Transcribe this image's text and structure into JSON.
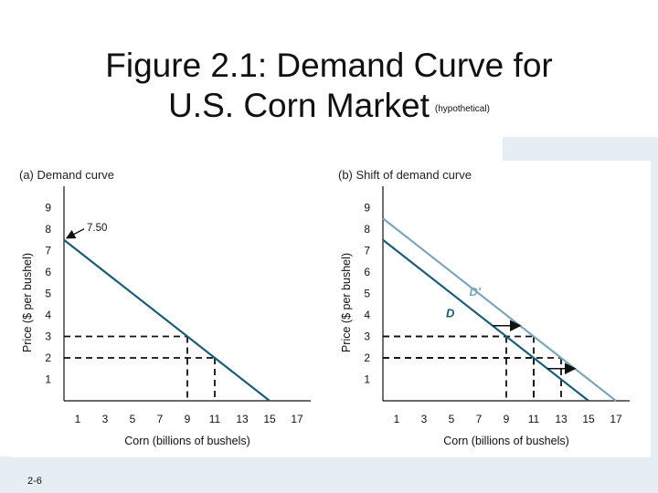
{
  "slide": {
    "title_line1": "Figure 2.1: Demand Curve for",
    "title_line2": "U.S. Corn Market",
    "title_note": "(hypothetical)",
    "footer": "2-6"
  },
  "colors": {
    "demand": "#1f5c73",
    "shifted_demand": "#7fa6b8",
    "dashed": "#111111",
    "axis": "#111111",
    "arrow": "#111111",
    "background_fade": "#e6eef3"
  },
  "chart_data": [
    {
      "type": "line",
      "title": "(a) Demand curve",
      "xlabel": "Corn (billions of bushels)",
      "ylabel": "Price ($ per bushel)",
      "x_ticks": [
        "1",
        "3",
        "5",
        "7",
        "9",
        "11",
        "13",
        "15",
        "17"
      ],
      "y_ticks": [
        "1",
        "2",
        "3",
        "4",
        "5",
        "6",
        "7",
        "8",
        "9"
      ],
      "xlim": [
        0,
        18
      ],
      "ylim": [
        0,
        10
      ],
      "series": [
        {
          "values": [
            [
              0,
              7.5
            ],
            [
              15,
              0
            ]
          ],
          "color": "#1f5c73"
        }
      ],
      "dashed_guides": [
        {
          "x": 9,
          "y": 3
        },
        {
          "x": 11,
          "y": 2
        }
      ],
      "annotations": [
        {
          "text": "7.50",
          "x": 0,
          "y": 7.5
        }
      ]
    },
    {
      "type": "line",
      "title": "(b) Shift of demand curve",
      "xlabel": "Corn (billions of bushels)",
      "ylabel": "Price ($ per bushel)",
      "x_ticks": [
        "1",
        "3",
        "5",
        "7",
        "9",
        "11",
        "13",
        "15",
        "17"
      ],
      "y_ticks": [
        "1",
        "2",
        "3",
        "4",
        "5",
        "6",
        "7",
        "8",
        "9"
      ],
      "xlim": [
        0,
        18
      ],
      "ylim": [
        0,
        10
      ],
      "series": [
        {
          "name": "D",
          "values": [
            [
              0,
              7.5
            ],
            [
              15,
              0
            ]
          ],
          "color": "#1f5c73"
        },
        {
          "name": "D'",
          "values": [
            [
              0,
              8.5
            ],
            [
              17,
              0
            ]
          ],
          "color": "#7fa6b8"
        }
      ],
      "dashed_guides": [
        {
          "x": 9,
          "y": 3
        },
        {
          "x": 11,
          "y": 3
        },
        {
          "x": 11,
          "y": 2
        },
        {
          "x": 13,
          "y": 2
        }
      ],
      "shift_arrows": [
        {
          "from": [
            8,
            3.5
          ],
          "to": [
            10,
            3.5
          ]
        },
        {
          "from": [
            12,
            1.5
          ],
          "to": [
            14,
            1.5
          ]
        }
      ]
    }
  ]
}
